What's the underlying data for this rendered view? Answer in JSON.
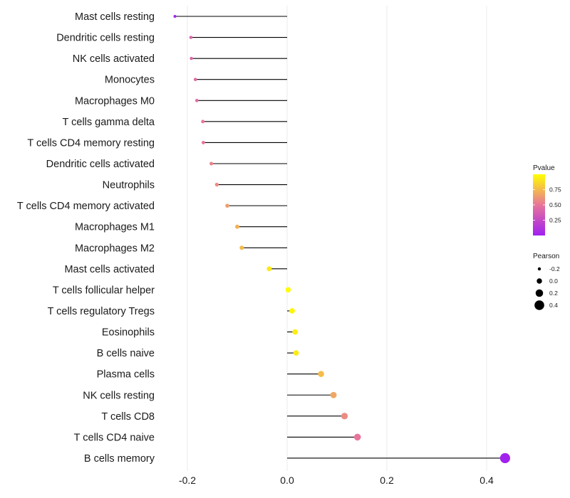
{
  "colors": {
    "low": "#a020f0",
    "mid": "#e8759a",
    "high": "#ffff00",
    "stem": "#000000",
    "grid": "#ebebeb"
  },
  "chart_data": {
    "type": "lollipop",
    "title": "",
    "xlabel": "",
    "ylabel": "",
    "xlim": [
      -0.27,
      0.47
    ],
    "xticks": [
      -0.2,
      0.0,
      0.2,
      0.4
    ],
    "xtick_labels": [
      "-0.2",
      "0.0",
      "0.2",
      "0.4"
    ],
    "categories": [
      "Mast cells resting",
      "Dendritic cells resting",
      "NK cells activated",
      "Monocytes",
      "Macrophages M0",
      "T cells gamma delta",
      "T cells CD4 memory resting",
      "Dendritic cells activated",
      "Neutrophils",
      "T cells CD4 memory activated",
      "Macrophages M1",
      "Macrophages M2",
      "Mast cells activated",
      "T cells follicular helper",
      "T cells regulatory  Tregs ",
      "Eosinophils",
      "B cells naive",
      "Plasma cells",
      "NK cells resting",
      "T cells CD8",
      "T cells CD4 naive",
      "B cells memory"
    ],
    "values": [
      -0.225,
      -0.193,
      -0.192,
      -0.184,
      -0.181,
      -0.169,
      -0.168,
      -0.152,
      -0.141,
      -0.12,
      -0.1,
      -0.091,
      -0.036,
      0.002,
      0.01,
      0.016,
      0.018,
      0.068,
      0.093,
      0.115,
      0.141,
      0.437
    ],
    "pvalues": [
      0.02,
      0.4,
      0.42,
      0.44,
      0.45,
      0.5,
      0.5,
      0.55,
      0.58,
      0.65,
      0.72,
      0.75,
      0.92,
      0.99,
      0.97,
      0.94,
      0.93,
      0.76,
      0.68,
      0.58,
      0.5,
      0.01
    ],
    "size_legend": {
      "title": "Pearson",
      "values": [
        -0.2,
        0.0,
        0.2,
        0.4
      ],
      "labels": [
        "-0.2",
        "0.0",
        "0.2",
        "0.4"
      ]
    },
    "color_legend": {
      "title": "Pvalue",
      "range": [
        0.0,
        1.0
      ],
      "ticks": [
        0.25,
        0.5,
        0.75
      ],
      "labels": [
        "0.25",
        "0.50",
        "0.75"
      ]
    },
    "grid": true
  }
}
